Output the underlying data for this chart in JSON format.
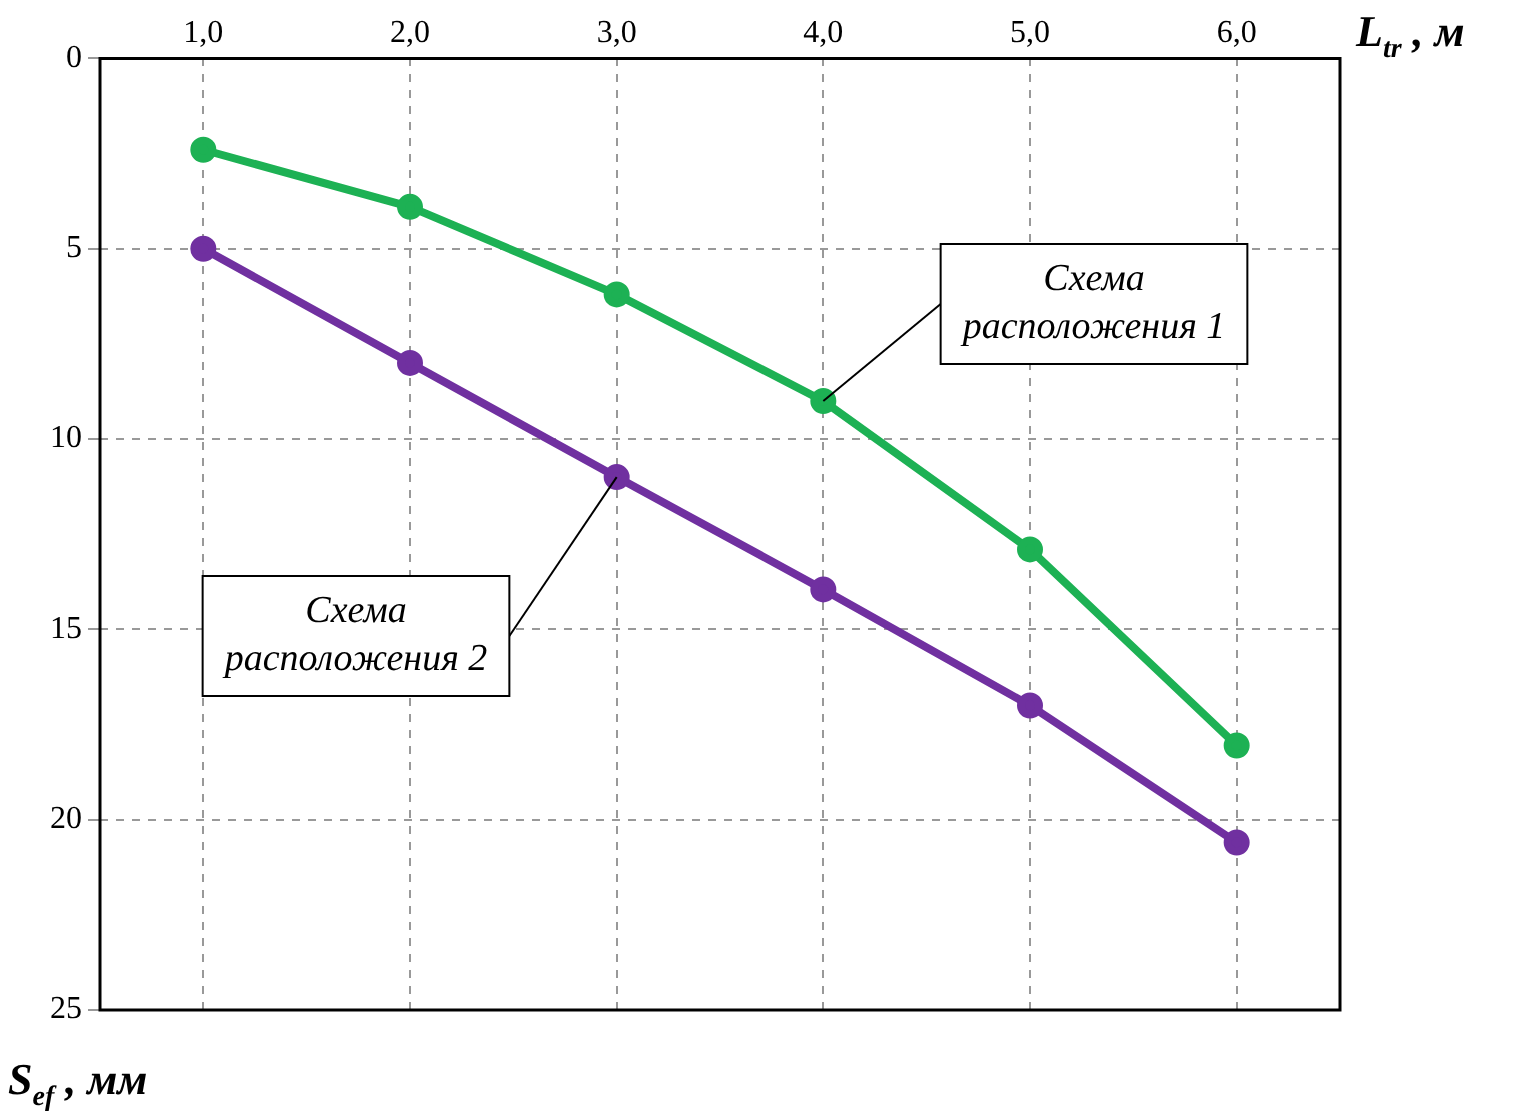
{
  "chart_data": {
    "type": "line",
    "xlabel": "L$_{tr}$ , м",
    "ylabel": "S$_{ef}$ , мм",
    "x": [
      1,
      2,
      3,
      4,
      5,
      6
    ],
    "series": [
      {
        "name": "Схема расположения 1",
        "color": "#1db154",
        "values": [
          2.4,
          3.9,
          6.2,
          9.0,
          12.9,
          18.05
        ]
      },
      {
        "name": "Схема расположения 2",
        "color": "#7030a0",
        "values": [
          5.0,
          8.0,
          11.0,
          13.95,
          17.0,
          20.6
        ]
      }
    ],
    "xlim": [
      0.5,
      6.5
    ],
    "xticks": [
      {
        "value": 1,
        "label": "1,0"
      },
      {
        "value": 2,
        "label": "2,0"
      },
      {
        "value": 3,
        "label": "3,0"
      },
      {
        "value": 4,
        "label": "4,0"
      },
      {
        "value": 5,
        "label": "5,0"
      },
      {
        "value": 6,
        "label": "6,0"
      }
    ],
    "ylim": [
      25,
      0
    ],
    "yticks": [
      0,
      5,
      10,
      15,
      20,
      25
    ],
    "grid": true,
    "legend": false,
    "marker": "circle",
    "line_style": "solid"
  }
}
